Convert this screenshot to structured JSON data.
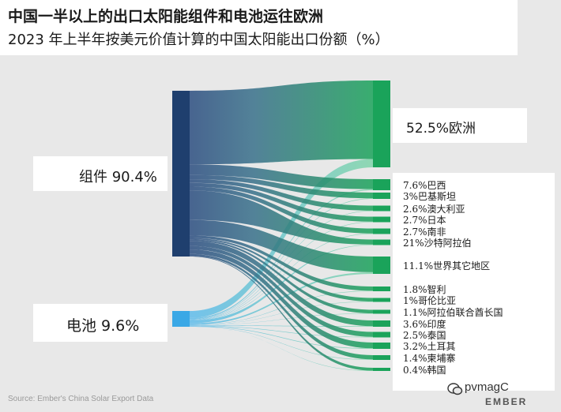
{
  "title": "中国一半以上的出口太阳能组件和电池运往欧洲",
  "subtitle": "2023 年上半年按美元价值计算的中国太阳能出口份额（%）",
  "source": "Source: Ember's China Solar Export Data",
  "watermark": "pvmagC",
  "brand": "EMBER",
  "chart_data": {
    "type": "sankey",
    "sources": [
      {
        "label": "组件 90.4%",
        "name": "组件",
        "value": 90.4
      },
      {
        "label": "电池 9.6%",
        "name": "电池",
        "value": 9.6
      }
    ],
    "destinations": [
      {
        "label": "52.5%欧洲",
        "name": "欧洲",
        "value": 52.5
      },
      {
        "label": "7.6%巴西",
        "name": "巴西",
        "value": 7.6
      },
      {
        "label": "3%巴基斯坦",
        "name": "巴基斯坦",
        "value": 3
      },
      {
        "label": "2.6%澳大利亚",
        "name": "澳大利亚",
        "value": 2.6
      },
      {
        "label": "2.7%日本",
        "name": "日本",
        "value": 2.7
      },
      {
        "label": "2.7%南非",
        "name": "南非",
        "value": 2.7
      },
      {
        "label": "21%沙特阿拉伯",
        "name": "沙特阿拉伯",
        "value": 21
      },
      {
        "label": "11.1%世界其它地区",
        "name": "世界其它地区",
        "value": 11.1
      },
      {
        "label": "1.8%智利",
        "name": "智利",
        "value": 1.8
      },
      {
        "label": "1%哥伦比亚",
        "name": "哥伦比亚",
        "value": 1
      },
      {
        "label": "1.1%阿拉伯联合酋长国",
        "name": "阿拉伯联合酋长国",
        "value": 1.1
      },
      {
        "label": "3.6%印度",
        "name": "印度",
        "value": 3.6
      },
      {
        "label": "2.5%泰国",
        "name": "泰国",
        "value": 2.5
      },
      {
        "label": "3.2%土耳其",
        "name": "土耳其",
        "value": 3.2
      },
      {
        "label": "1.4%柬埔寨",
        "name": "柬埔寨",
        "value": 1.4
      },
      {
        "label": "0.4%韩国",
        "name": "韩国",
        "value": 0.4
      }
    ],
    "colors": {
      "module": "#1f3f6e",
      "cell": "#3aa8e6",
      "destination": "#1aa35a"
    }
  }
}
